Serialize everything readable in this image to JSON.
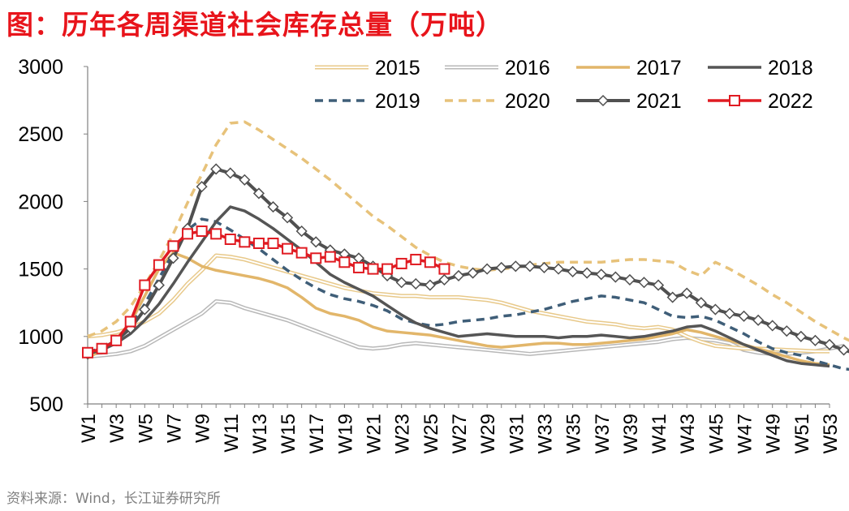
{
  "title": "图：历年各周渠道社会库存总量（万吨）",
  "source": "资料来源：Wind，长江证券研究所",
  "chart_data": {
    "type": "line",
    "title": "图：历年各周渠道社会库存总量（万吨）",
    "xlabel": "",
    "ylabel": "",
    "ylim": [
      500,
      3000
    ],
    "yticks": [
      500,
      1000,
      1500,
      2000,
      2500,
      3000
    ],
    "xticks": [
      "W1",
      "W3",
      "W5",
      "W7",
      "W9",
      "W11",
      "W13",
      "W15",
      "W17",
      "W19",
      "W21",
      "W23",
      "W25",
      "W27",
      "W29",
      "W31",
      "W33",
      "W35",
      "W37",
      "W39",
      "W41",
      "W43",
      "W45",
      "W47",
      "W49",
      "W51",
      "W53"
    ],
    "grid": false,
    "legend": "top-right",
    "series": [
      {
        "name": "2015",
        "color": "#e8c98a",
        "style": "double",
        "values": [
          1000,
          1010,
          1030,
          1060,
          1110,
          1170,
          1270,
          1390,
          1490,
          1600,
          1590,
          1570,
          1540,
          1510,
          1480,
          1450,
          1420,
          1390,
          1360,
          1340,
          1320,
          1310,
          1300,
          1300,
          1290,
          1290,
          1290,
          1280,
          1270,
          1250,
          1220,
          1190,
          1170,
          1150,
          1130,
          1110,
          1100,
          1090,
          1070,
          1060,
          1070,
          1050,
          1000,
          960,
          930,
          920,
          910,
          910,
          905,
          900,
          895,
          890,
          890
        ]
      },
      {
        "name": "2016",
        "color": "#b8b8b8",
        "style": "double",
        "values": [
          850,
          860,
          870,
          890,
          930,
          990,
          1050,
          1110,
          1170,
          1260,
          1250,
          1210,
          1180,
          1150,
          1120,
          1080,
          1040,
          1000,
          960,
          920,
          910,
          920,
          940,
          950,
          940,
          930,
          920,
          910,
          900,
          890,
          880,
          870,
          880,
          890,
          900,
          910,
          920,
          930,
          940,
          950,
          960,
          980,
          990,
          980,
          970,
          950,
          900,
          880,
          870,
          870,
          880,
          890,
          910,
          930
        ]
      },
      {
        "name": "2017",
        "color": "#e2b66a",
        "style": "solid",
        "values": [
          840,
          900,
          980,
          1100,
          1300,
          1500,
          1620,
          1580,
          1520,
          1490,
          1470,
          1450,
          1430,
          1400,
          1360,
          1290,
          1210,
          1170,
          1150,
          1120,
          1070,
          1040,
          1030,
          1020,
          1010,
          990,
          970,
          950,
          930,
          920,
          930,
          940,
          950,
          950,
          940,
          940,
          950,
          960,
          970,
          980,
          1000,
          1020,
          1050,
          1030,
          1000,
          970,
          940,
          910,
          880,
          850,
          820,
          800,
          790
        ]
      },
      {
        "name": "2018",
        "color": "#555555",
        "style": "solid",
        "values": [
          870,
          900,
          950,
          1020,
          1120,
          1240,
          1390,
          1550,
          1700,
          1850,
          1960,
          1930,
          1870,
          1800,
          1720,
          1640,
          1550,
          1460,
          1400,
          1350,
          1300,
          1230,
          1160,
          1100,
          1060,
          1030,
          1000,
          1010,
          1020,
          1010,
          1000,
          1000,
          1000,
          990,
          1000,
          1000,
          1010,
          1000,
          990,
          1000,
          1020,
          1040,
          1070,
          1080,
          1040,
          990,
          940,
          900,
          860,
          820,
          800,
          790,
          780
        ]
      },
      {
        "name": "2019",
        "color": "#3f5e78",
        "style": "dashed",
        "values": [
          880,
          920,
          980,
          1080,
          1240,
          1430,
          1620,
          1790,
          1870,
          1850,
          1790,
          1720,
          1650,
          1570,
          1490,
          1420,
          1360,
          1310,
          1280,
          1260,
          1230,
          1190,
          1130,
          1100,
          1080,
          1090,
          1110,
          1120,
          1130,
          1150,
          1160,
          1180,
          1200,
          1230,
          1260,
          1280,
          1300,
          1290,
          1270,
          1250,
          1200,
          1150,
          1140,
          1150,
          1120,
          1070,
          1020,
          960,
          910,
          880,
          860,
          820,
          790,
          760,
          750,
          750,
          760,
          780
        ]
      },
      {
        "name": "2020",
        "color": "#e7c27a",
        "style": "dashed",
        "values": [
          1000,
          1040,
          1110,
          1220,
          1380,
          1560,
          1760,
          1990,
          2200,
          2420,
          2580,
          2590,
          2530,
          2460,
          2390,
          2320,
          2240,
          2160,
          2070,
          1980,
          1890,
          1820,
          1740,
          1660,
          1600,
          1550,
          1520,
          1500,
          1490,
          1500,
          1510,
          1530,
          1540,
          1550,
          1550,
          1550,
          1550,
          1560,
          1570,
          1570,
          1560,
          1550,
          1490,
          1450,
          1550,
          1500,
          1440,
          1380,
          1310,
          1250,
          1180,
          1110,
          1050,
          990,
          940,
          890,
          860,
          850
        ]
      },
      {
        "name": "2021",
        "color": "#505050",
        "style": "diamond",
        "values": [
          870,
          910,
          970,
          1060,
          1200,
          1380,
          1580,
          1800,
          2110,
          2240,
          2210,
          2160,
          2060,
          1960,
          1880,
          1780,
          1700,
          1640,
          1610,
          1580,
          1520,
          1450,
          1400,
          1390,
          1380,
          1420,
          1450,
          1470,
          1500,
          1510,
          1520,
          1520,
          1510,
          1500,
          1480,
          1470,
          1460,
          1440,
          1420,
          1400,
          1380,
          1290,
          1320,
          1250,
          1200,
          1170,
          1150,
          1120,
          1080,
          1040,
          1000,
          970,
          940,
          900,
          870,
          860,
          870
        ]
      },
      {
        "name": "2022",
        "color": "#e01b22",
        "style": "square",
        "values": [
          880,
          910,
          970,
          1110,
          1380,
          1530,
          1670,
          1760,
          1780,
          1760,
          1720,
          1700,
          1690,
          1690,
          1650,
          1620,
          1580,
          1590,
          1550,
          1510,
          1500,
          1500,
          1540,
          1570,
          1550,
          1500
        ]
      }
    ]
  }
}
